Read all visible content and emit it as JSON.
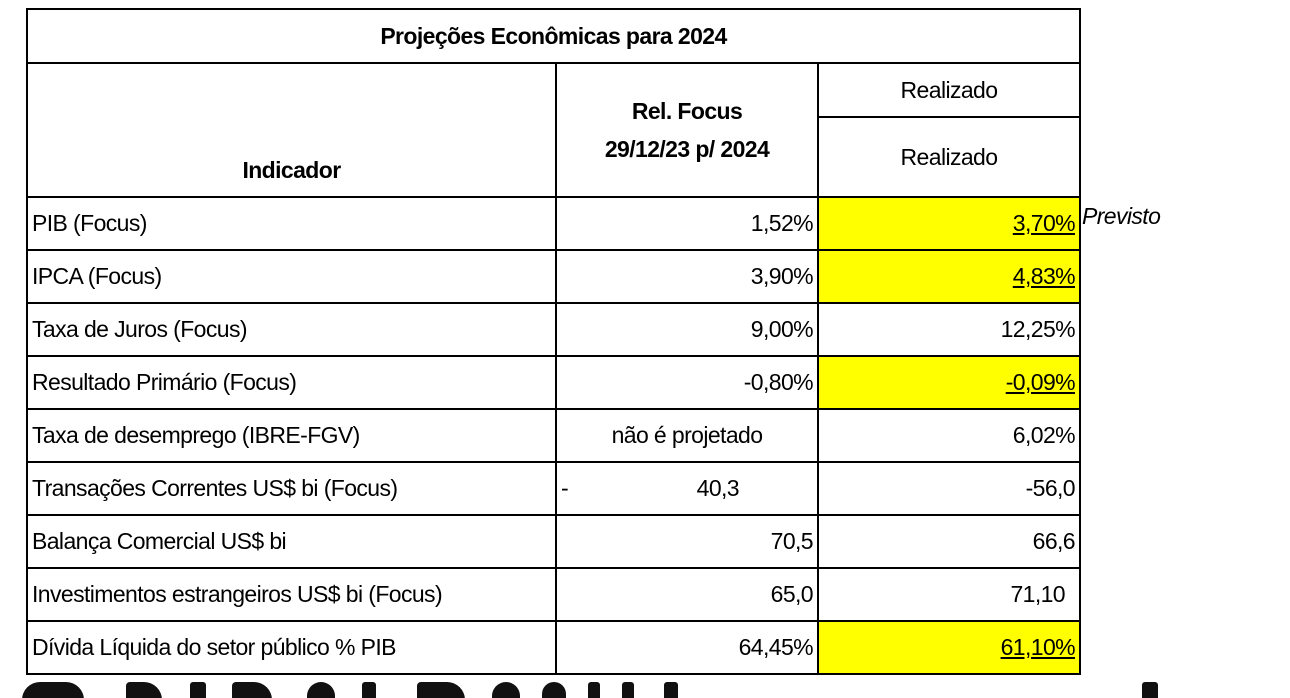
{
  "title": "Projeções Econômicas para 2024",
  "header": {
    "indicator": "Indicador",
    "focus_line1": "Rel. Focus",
    "focus_line2": "29/12/23 p/ 2024",
    "realizado_top": "Realizado",
    "realizado_bottom": "Realizado"
  },
  "side_note": "Previsto",
  "rows": [
    {
      "indicator": "PIB (Focus)",
      "focus": "1,52%",
      "realized": "3,70%",
      "highlight": true
    },
    {
      "indicator": "IPCA (Focus)",
      "focus": "3,90%",
      "realized": "4,83%",
      "highlight": true
    },
    {
      "indicator": "Taxa de Juros (Focus)",
      "focus": "9,00%",
      "realized": "12,25%",
      "highlight": false
    },
    {
      "indicator": "Resultado Primário (Focus)",
      "focus": "-0,80%",
      "realized": "-0,09%",
      "highlight": true
    },
    {
      "indicator": "Taxa de desemprego (IBRE-FGV)",
      "focus": "não é projetado",
      "realized": "6,02%",
      "highlight": false
    },
    {
      "indicator": "Transações Correntes US$ bi (Focus)",
      "focus_sign": "-",
      "focus": "40,3",
      "realized": "-56,0",
      "highlight": false
    },
    {
      "indicator": "Balança Comercial US$ bi",
      "focus": "70,5",
      "realized": "66,6",
      "highlight": false
    },
    {
      "indicator": "Investimentos estrangeiros US$ bi (Focus)",
      "focus": "65,0",
      "realized": "71,10",
      "highlight": false
    },
    {
      "indicator": "Dívida Líquida do setor público % PIB",
      "focus": "64,45%",
      "realized": "61,10%",
      "highlight": true
    }
  ],
  "colors": {
    "highlight": "#ffff00",
    "border": "#000000"
  }
}
